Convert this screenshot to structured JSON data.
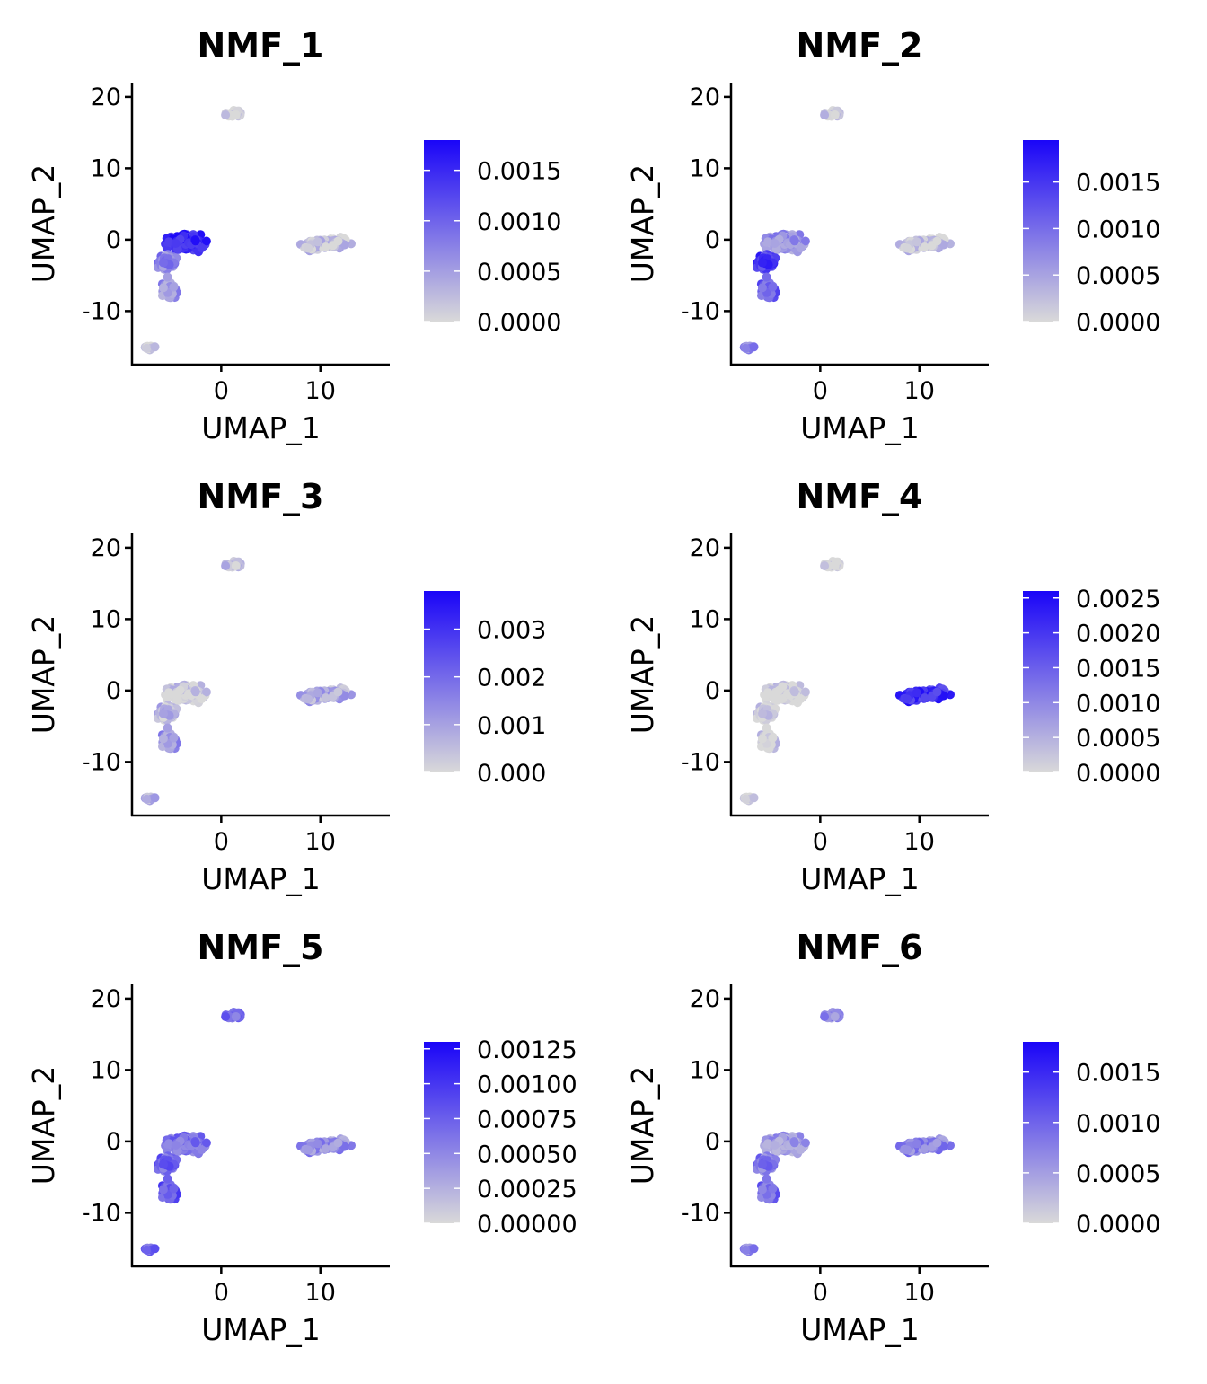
{
  "colors": {
    "low": "#d9d9d9",
    "high": "#1a05f8",
    "axis": "#000000"
  },
  "chart_data": [
    {
      "type": "scatter",
      "title": "NMF_1",
      "xlabel": "UMAP_1",
      "ylabel": "UMAP_2",
      "xlim": [
        -9,
        17
      ],
      "ylim": [
        -17.5,
        22
      ],
      "xticks": [
        0,
        10
      ],
      "yticks": [
        -10,
        0,
        10,
        20
      ],
      "ytick_labels": [
        "-10",
        "0",
        "10",
        "20"
      ],
      "legend": {
        "min": 0,
        "max": 0.0018,
        "ticks": [
          0,
          0.0005,
          0.001,
          0.0015
        ],
        "labels": [
          "0.0000",
          "0.0005",
          "0.0010",
          "0.0015"
        ],
        "position": "right"
      },
      "cluster_expression": {
        "main_upper": 0.85,
        "main_lower": 0.4,
        "lower_tail": 0.3,
        "top_island": 0.05,
        "small_bottom": 0.05,
        "right_cluster": 0.1
      }
    },
    {
      "type": "scatter",
      "title": "NMF_2",
      "xlabel": "UMAP_1",
      "ylabel": "UMAP_2",
      "xlim": [
        -9,
        17
      ],
      "ylim": [
        -17.5,
        22
      ],
      "xticks": [
        0,
        10
      ],
      "yticks": [
        -10,
        0,
        10,
        20
      ],
      "ytick_labels": [
        "-10",
        "0",
        "10",
        "20"
      ],
      "legend": {
        "min": 0,
        "max": 0.00195,
        "ticks": [
          0,
          0.0005,
          0.001,
          0.0015
        ],
        "labels": [
          "0.0000",
          "0.0005",
          "0.0010",
          "0.0015"
        ],
        "position": "right"
      },
      "cluster_expression": {
        "main_upper": 0.35,
        "main_lower": 0.75,
        "lower_tail": 0.55,
        "top_island": 0.1,
        "small_bottom": 0.4,
        "right_cluster": 0.08
      }
    },
    {
      "type": "scatter",
      "title": "NMF_3",
      "xlabel": "UMAP_1",
      "ylabel": "UMAP_2",
      "xlim": [
        -9,
        17
      ],
      "ylim": [
        -17.5,
        22
      ],
      "xticks": [
        0,
        10
      ],
      "yticks": [
        -10,
        0,
        10,
        20
      ],
      "ytick_labels": [
        "-10",
        "0",
        "10",
        "20"
      ],
      "legend": {
        "min": 0,
        "max": 0.0038,
        "ticks": [
          0,
          0.001,
          0.002,
          0.003
        ],
        "labels": [
          "0.000",
          "0.001",
          "0.002",
          "0.003"
        ],
        "position": "right"
      },
      "cluster_expression": {
        "main_upper": 0.08,
        "main_lower": 0.15,
        "lower_tail": 0.3,
        "top_island": 0.15,
        "small_bottom": 0.2,
        "right_cluster": 0.22
      }
    },
    {
      "type": "scatter",
      "title": "NMF_4",
      "xlabel": "UMAP_1",
      "ylabel": "UMAP_2",
      "xlim": [
        -9,
        17
      ],
      "ylim": [
        -17.5,
        22
      ],
      "xticks": [
        0,
        10
      ],
      "yticks": [
        -10,
        0,
        10,
        20
      ],
      "ytick_labels": [
        "-10",
        "0",
        "10",
        "20"
      ],
      "legend": {
        "min": 0,
        "max": 0.0026,
        "ticks": [
          0,
          0.0005,
          0.001,
          0.0015,
          0.002,
          0.0025
        ],
        "labels": [
          "0.0000",
          "0.0005",
          "0.0010",
          "0.0015",
          "0.0020",
          "0.0025"
        ],
        "position": "right"
      },
      "cluster_expression": {
        "main_upper": 0.03,
        "main_lower": 0.03,
        "lower_tail": 0.03,
        "top_island": 0.02,
        "small_bottom": 0.02,
        "right_cluster": 0.8
      }
    },
    {
      "type": "scatter",
      "title": "NMF_5",
      "xlabel": "UMAP_1",
      "ylabel": "UMAP_2",
      "xlim": [
        -9,
        17
      ],
      "ylim": [
        -17.5,
        22
      ],
      "xticks": [
        0,
        10
      ],
      "yticks": [
        -10,
        0,
        10,
        20
      ],
      "ytick_labels": [
        "-10",
        "0",
        "10",
        "20"
      ],
      "legend": {
        "min": 0,
        "max": 0.0013,
        "ticks": [
          0,
          0.00025,
          0.0005,
          0.00075,
          0.001,
          0.00125
        ],
        "labels": [
          "0.00000",
          "0.00025",
          "0.00050",
          "0.00075",
          "0.00100",
          "0.00125"
        ],
        "position": "right"
      },
      "cluster_expression": {
        "main_upper": 0.5,
        "main_lower": 0.55,
        "lower_tail": 0.6,
        "top_island": 0.55,
        "small_bottom": 0.55,
        "right_cluster": 0.35
      }
    },
    {
      "type": "scatter",
      "title": "NMF_6",
      "xlabel": "UMAP_1",
      "ylabel": "UMAP_2",
      "xlim": [
        -9,
        17
      ],
      "ylim": [
        -17.5,
        22
      ],
      "xticks": [
        0,
        10
      ],
      "yticks": [
        -10,
        0,
        10,
        20
      ],
      "ytick_labels": [
        "-10",
        "0",
        "10",
        "20"
      ],
      "legend": {
        "min": 0,
        "max": 0.0018,
        "ticks": [
          0,
          0.0005,
          0.001,
          0.0015
        ],
        "labels": [
          "0.0000",
          "0.0005",
          "0.0010",
          "0.0015"
        ],
        "position": "right"
      },
      "cluster_expression": {
        "main_upper": 0.3,
        "main_lower": 0.45,
        "lower_tail": 0.5,
        "top_island": 0.4,
        "small_bottom": 0.4,
        "right_cluster": 0.4
      }
    }
  ]
}
